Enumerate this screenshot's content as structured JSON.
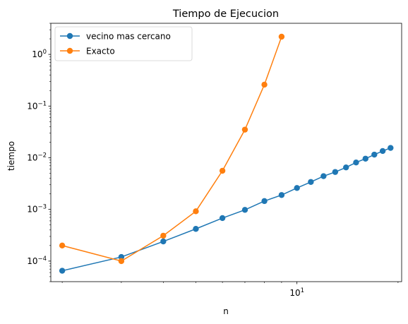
{
  "chart_data": {
    "type": "line",
    "title": "Tiempo de Ejecucion",
    "xlabel": "n",
    "ylabel": "tiempo",
    "x_scale": "log",
    "y_scale": "log",
    "xlim": [
      1.85,
      20.5
    ],
    "ylim": [
      4e-05,
      4.0
    ],
    "x_major_ticks": [
      {
        "value": 10,
        "base": "10",
        "exp": "1"
      }
    ],
    "x_minor_ticks": [
      2,
      3,
      4,
      5,
      6,
      7,
      8,
      9,
      20
    ],
    "y_major_ticks": [
      {
        "value": 0.0001,
        "base": "10",
        "exp": "−4"
      },
      {
        "value": 0.001,
        "base": "10",
        "exp": "−3"
      },
      {
        "value": 0.01,
        "base": "10",
        "exp": "−2"
      },
      {
        "value": 0.1,
        "base": "10",
        "exp": "−1"
      },
      {
        "value": 1,
        "base": "10",
        "exp": "0"
      }
    ],
    "legend": "top-left",
    "grid": false,
    "series": [
      {
        "name": "vecino mas cercano",
        "color": "#1f77b4",
        "x": [
          2,
          3,
          4,
          5,
          6,
          7,
          8,
          9,
          10,
          11,
          12,
          13,
          14,
          15,
          16,
          17,
          18,
          19
        ],
        "y": [
          6.5e-05,
          0.00012,
          0.00024,
          0.00042,
          0.00068,
          0.00098,
          0.00145,
          0.0019,
          0.0026,
          0.0034,
          0.0044,
          0.0053,
          0.0065,
          0.0081,
          0.0096,
          0.0115,
          0.0135,
          0.0155
        ]
      },
      {
        "name": "Exacto",
        "color": "#ff7f0e",
        "x": [
          2,
          3,
          4,
          5,
          6,
          7,
          8,
          9
        ],
        "y": [
          0.0002,
          0.0001,
          0.00031,
          0.00092,
          0.0056,
          0.035,
          0.26,
          2.2
        ]
      }
    ]
  }
}
